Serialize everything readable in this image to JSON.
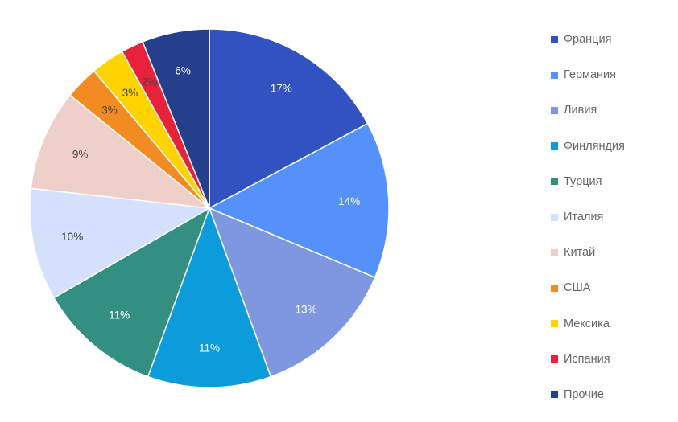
{
  "chart_data": {
    "type": "pie",
    "title": "",
    "legend_position": "right",
    "slices": [
      {
        "label": "Франция",
        "value": 17,
        "value_label": "17%",
        "color": "#3252c2"
      },
      {
        "label": "Германия",
        "value": 14,
        "value_label": "14%",
        "color": "#5591fa"
      },
      {
        "label": "Ливия",
        "value": 13,
        "value_label": "13%",
        "color": "#7e97e0"
      },
      {
        "label": "Финляндия",
        "value": 11,
        "value_label": "11%",
        "color": "#0c9bdb"
      },
      {
        "label": "Турция",
        "value": 11,
        "value_label": "11%",
        "color": "#328f82"
      },
      {
        "label": "Италия",
        "value": 10,
        "value_label": "10%",
        "color": "#d5e0fd"
      },
      {
        "label": "Китай",
        "value": 9,
        "value_label": "9%",
        "color": "#efcfca"
      },
      {
        "label": "США",
        "value": 3,
        "value_label": "3%",
        "color": "#f28b22"
      },
      {
        "label": "Мексика",
        "value": 3,
        "value_label": "3%",
        "color": "#ffd300"
      },
      {
        "label": "Испания",
        "value": 2,
        "value_label": "2%",
        "color": "#e8213c"
      },
      {
        "label": "Прочие",
        "value": 6,
        "value_label": "6%",
        "color": "#263f8c"
      }
    ]
  }
}
